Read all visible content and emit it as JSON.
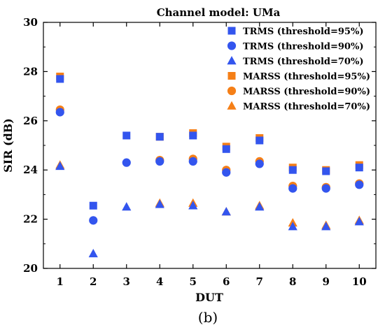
{
  "chart_data": {
    "type": "scatter",
    "title": "Channel model: UMa",
    "xlabel": "DUT",
    "ylabel": "SIR (dB)",
    "xlim": [
      0.5,
      10.5
    ],
    "ylim": [
      20,
      30
    ],
    "x_ticks": [
      "1",
      "2",
      "3",
      "4",
      "5",
      "6",
      "7",
      "8",
      "9",
      "10"
    ],
    "y_ticks": [
      "20",
      "22",
      "24",
      "26",
      "28",
      "30"
    ],
    "grid": false,
    "legend_position": "top-right",
    "x": [
      1,
      2,
      3,
      4,
      5,
      6,
      7,
      8,
      9,
      10
    ],
    "series": [
      {
        "name": "MARSS (threshold=95%)",
        "color": "#f57f17",
        "marker": "square",
        "values": [
          27.8,
          null,
          null,
          25.35,
          25.5,
          24.95,
          25.3,
          24.1,
          24.0,
          24.2
        ]
      },
      {
        "name": "MARSS (threshold=90%)",
        "color": "#f57f17",
        "marker": "circle",
        "values": [
          26.45,
          null,
          null,
          24.4,
          24.45,
          24.0,
          24.35,
          23.35,
          23.3,
          23.45
        ]
      },
      {
        "name": "MARSS (threshold=70%)",
        "color": "#f57f17",
        "marker": "triangle",
        "values": [
          24.2,
          null,
          null,
          22.65,
          22.65,
          22.3,
          22.55,
          21.85,
          21.75,
          21.95
        ]
      },
      {
        "name": "TRMS (threshold=95%)",
        "color": "#3355ee",
        "marker": "square",
        "values": [
          27.7,
          22.55,
          25.4,
          25.35,
          25.4,
          24.85,
          25.2,
          24.0,
          23.95,
          24.1
        ]
      },
      {
        "name": "TRMS (threshold=90%)",
        "color": "#3355ee",
        "marker": "circle",
        "values": [
          26.35,
          21.95,
          24.3,
          24.35,
          24.35,
          23.9,
          24.25,
          23.25,
          23.25,
          23.4
        ]
      },
      {
        "name": "TRMS (threshold=70%)",
        "color": "#3355ee",
        "marker": "triangle",
        "values": [
          24.15,
          20.6,
          22.5,
          22.6,
          22.55,
          22.3,
          22.5,
          21.7,
          21.7,
          21.9
        ]
      }
    ],
    "legend_order": [
      "TRMS (threshold=95%)",
      "TRMS (threshold=90%)",
      "TRMS (threshold=70%)",
      "MARSS (threshold=95%)",
      "MARSS (threshold=90%)",
      "MARSS (threshold=70%)"
    ]
  },
  "caption": "(b)"
}
